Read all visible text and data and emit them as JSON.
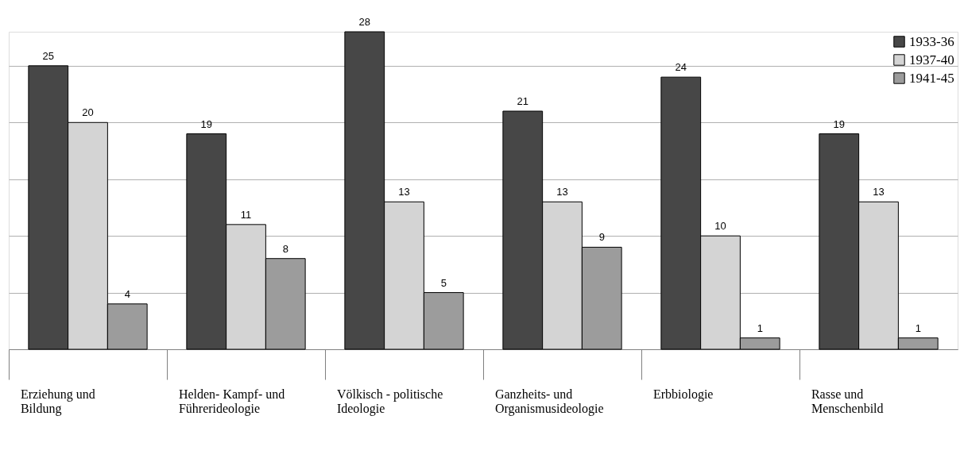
{
  "chart_data": {
    "type": "bar",
    "categories": [
      "Erziehung und\nBildung",
      "Helden- Kampf- und\nFührerideologie",
      "Völkisch - politische\nIdeologie",
      "Ganzheits- und\nOrganismusideologie",
      "Erbbiologie",
      "Rasse und\nMenschenbild"
    ],
    "series": [
      {
        "name": "1933-36",
        "color": "#474747",
        "values": [
          25,
          19,
          28,
          21,
          24,
          19
        ]
      },
      {
        "name": "1937-40",
        "color": "#d4d4d4",
        "values": [
          20,
          11,
          13,
          13,
          10,
          13
        ]
      },
      {
        "name": "1941-45",
        "color": "#9c9c9c",
        "values": [
          4,
          8,
          5,
          9,
          1,
          1
        ]
      }
    ],
    "tick_labels": "x",
    "grid": "y",
    "legend": "top right",
    "data_labels": true
  }
}
